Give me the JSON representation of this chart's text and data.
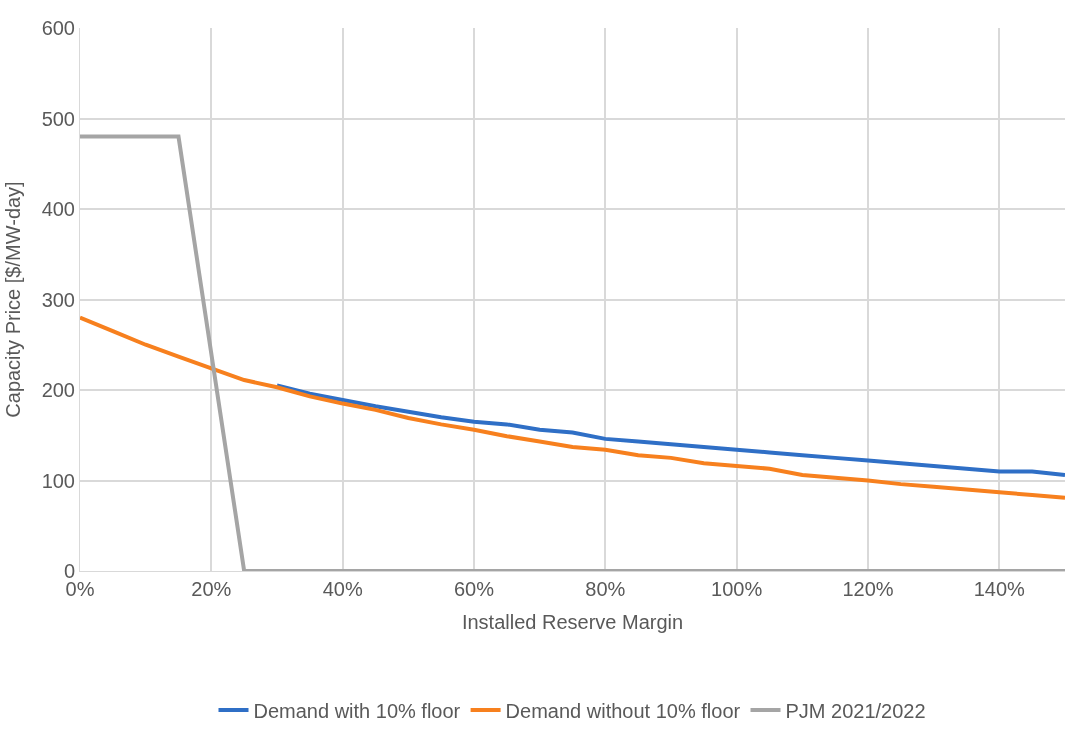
{
  "chart_data": {
    "type": "line",
    "xlabel": "Installed Reserve Margin",
    "ylabel": "Capacity Price [$/MW-day]",
    "series": [
      {
        "name": "Demand with 10% floor",
        "color": "#2f6fc6",
        "x": [
          30,
          35,
          40,
          45,
          50,
          55,
          60,
          65,
          70,
          75,
          80,
          85,
          90,
          95,
          100,
          105,
          110,
          115,
          120,
          125,
          130,
          135,
          140,
          145,
          150
        ],
        "values": [
          205,
          196,
          189,
          182,
          176,
          170,
          165,
          162,
          156,
          153,
          146,
          143,
          140,
          137,
          134,
          131,
          128,
          125,
          122,
          119,
          116,
          113,
          110,
          110,
          106
        ]
      },
      {
        "name": "Demand without 10% floor",
        "color": "#f7801e",
        "x": [
          0,
          5,
          10,
          15,
          20,
          25,
          30,
          35,
          40,
          45,
          50,
          55,
          60,
          65,
          70,
          75,
          80,
          85,
          90,
          95,
          100,
          105,
          110,
          115,
          120,
          125,
          130,
          135,
          140,
          145,
          150
        ],
        "values": [
          280,
          265,
          250,
          237,
          224,
          211,
          203,
          193,
          185,
          178,
          169,
          162,
          156,
          149,
          143,
          137,
          134,
          128,
          125,
          119,
          116,
          113,
          106,
          103,
          100,
          96,
          93,
          90,
          87,
          84,
          81
        ]
      },
      {
        "name": "PJM 2021/2022",
        "color": "#a5a5a5",
        "x": [
          0,
          15,
          25,
          150
        ],
        "values": [
          480,
          480,
          0,
          0
        ]
      }
    ],
    "xlim": [
      0,
      150
    ],
    "xticks": [
      {
        "value": 0,
        "label": "0%"
      },
      {
        "value": 20,
        "label": "20%"
      },
      {
        "value": 40,
        "label": "40%"
      },
      {
        "value": 60,
        "label": "60%"
      },
      {
        "value": 80,
        "label": "80%"
      },
      {
        "value": 100,
        "label": "100%"
      },
      {
        "value": 120,
        "label": "120%"
      },
      {
        "value": 140,
        "label": "140%"
      }
    ],
    "ylim": [
      0,
      600
    ],
    "yticks": [
      0,
      100,
      200,
      300,
      400,
      500,
      600
    ],
    "grid": true,
    "legend": "bottom",
    "marker": "none",
    "line_style": "solid"
  }
}
